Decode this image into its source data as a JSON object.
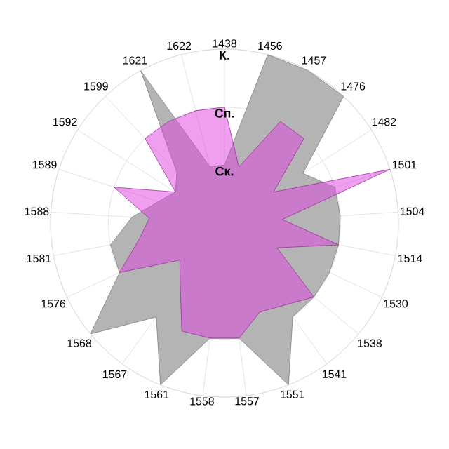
{
  "chart_data": {
    "type": "radar",
    "categories": [
      "1438",
      "1456",
      "1457",
      "1476",
      "1482",
      "1501",
      "1504",
      "1514",
      "1530",
      "1538",
      "1541",
      "1551",
      "1557",
      "1558",
      "1561",
      "1567",
      "1568",
      "1576",
      "1581",
      "1588",
      "1589",
      "1592",
      "1599",
      "1621",
      "1622"
    ],
    "series": [
      {
        "color": "#b4b4b4",
        "values": [
          1.0,
          3.0,
          3.0,
          3.0,
          1.6,
          2.0,
          2.0,
          2.0,
          2.0,
          2.0,
          2.0,
          3.0,
          2.0,
          2.0,
          3.0,
          2.0,
          3.0,
          2.0,
          2.0,
          1.6,
          1.2,
          1.0,
          1.2,
          3.0,
          1.0
        ]
      },
      {
        "color": "#e040e0",
        "values": [
          2.0,
          1.0,
          2.0,
          2.0,
          1.0,
          3.0,
          1.0,
          2.0,
          1.0,
          2.0,
          1.75,
          1.65,
          2.0,
          2.0,
          2.0,
          1.3,
          1.0,
          2.0,
          1.5,
          1.3,
          2.0,
          1.0,
          2.0,
          2.0,
          2.0
        ]
      }
    ],
    "ylim": [
      0,
      3
    ],
    "yticks": [
      {
        "value": 1,
        "label": "Ск."
      },
      {
        "value": 2,
        "label": "Сп."
      },
      {
        "value": 3,
        "label": "К."
      }
    ],
    "grid": true
  }
}
